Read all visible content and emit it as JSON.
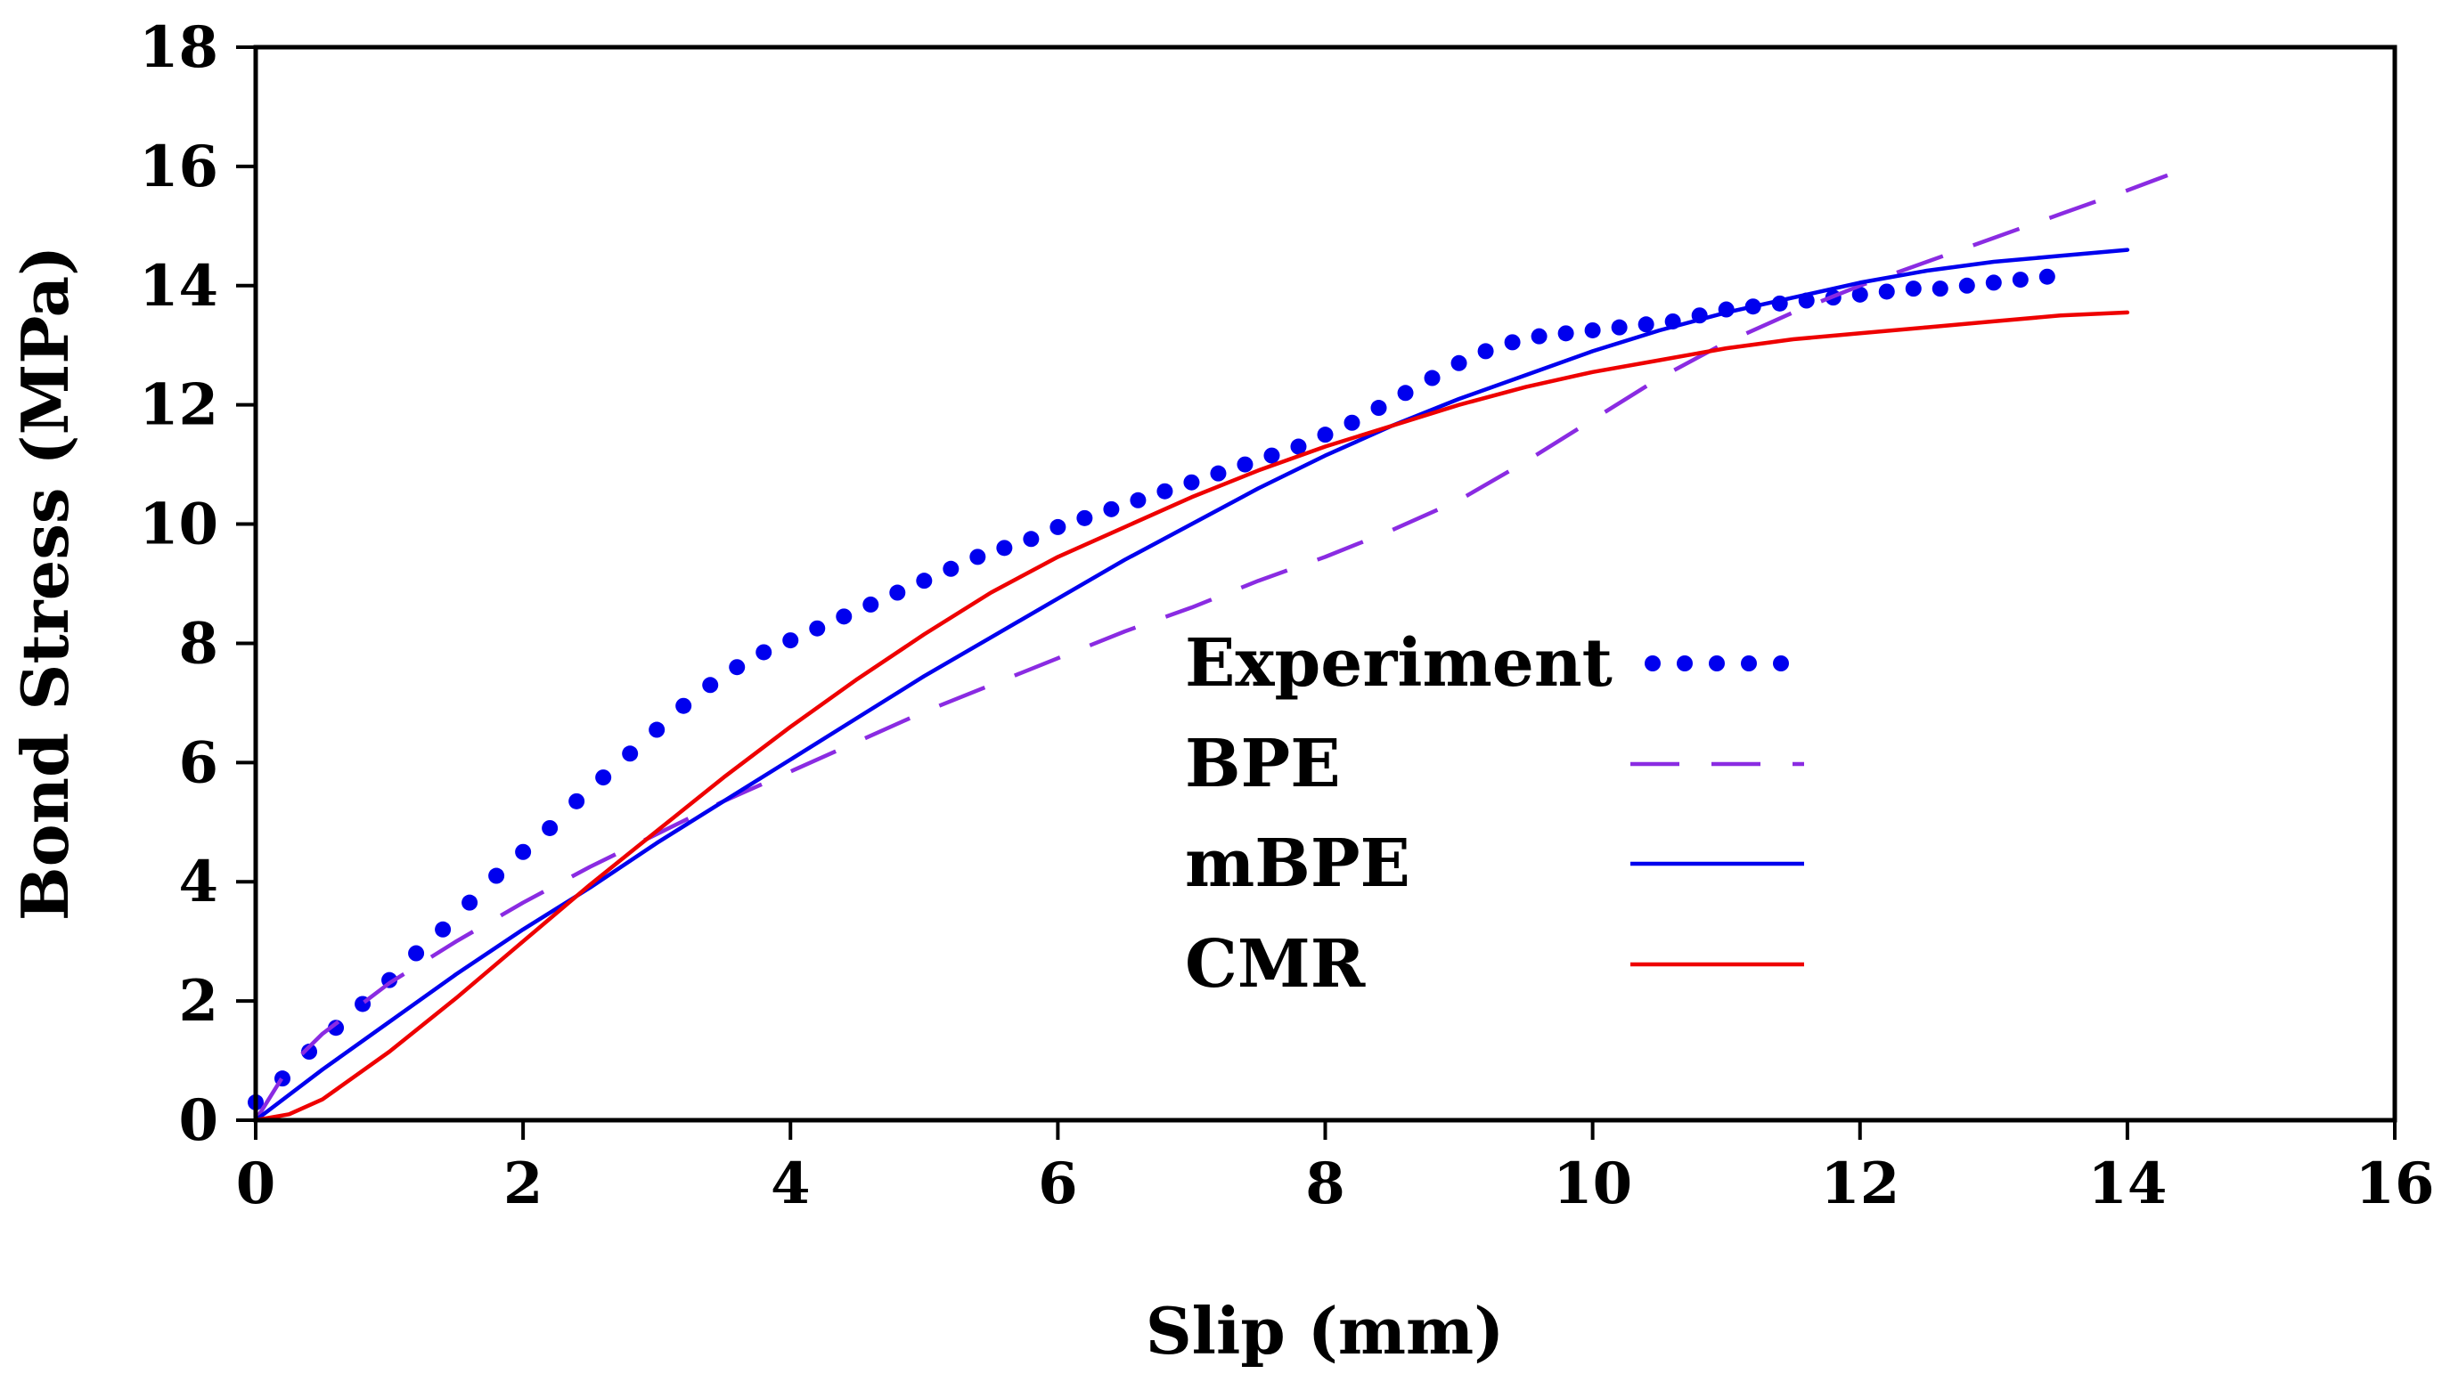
{
  "chart_data": {
    "type": "line",
    "title": "",
    "xlabel": "Slip (mm)",
    "ylabel": "Bond Stress (MPa)",
    "xlim": [
      0,
      16
    ],
    "ylim": [
      0,
      18
    ],
    "xticks": [
      0,
      2,
      4,
      6,
      8,
      10,
      12,
      14,
      16
    ],
    "yticks": [
      0,
      2,
      4,
      6,
      8,
      10,
      12,
      14,
      16,
      18
    ],
    "grid": false,
    "legend_position": "center-right",
    "series": [
      {
        "name": "Experiment",
        "style": "dotted",
        "color": "#0000ee",
        "x": [
          0,
          0.2,
          0.4,
          0.6,
          0.8,
          1.0,
          1.2,
          1.4,
          1.6,
          1.8,
          2.0,
          2.2,
          2.4,
          2.6,
          2.8,
          3.0,
          3.2,
          3.4,
          3.6,
          3.8,
          4.0,
          4.2,
          4.4,
          4.6,
          4.8,
          5.0,
          5.2,
          5.4,
          5.6,
          5.8,
          6.0,
          6.2,
          6.4,
          6.6,
          6.8,
          7.0,
          7.2,
          7.4,
          7.6,
          7.8,
          8.0,
          8.2,
          8.4,
          8.6,
          8.8,
          9.0,
          9.2,
          9.4,
          9.6,
          9.8,
          10.0,
          10.2,
          10.4,
          10.6,
          10.8,
          11.0,
          11.2,
          11.4,
          11.6,
          11.8,
          12.0,
          12.2,
          12.4,
          12.6,
          12.8,
          13.0,
          13.2,
          13.4
        ],
        "y": [
          0.3,
          0.7,
          1.15,
          1.55,
          1.95,
          2.35,
          2.8,
          3.2,
          3.65,
          4.1,
          4.5,
          4.9,
          5.35,
          5.75,
          6.15,
          6.55,
          6.95,
          7.3,
          7.6,
          7.85,
          8.05,
          8.25,
          8.45,
          8.65,
          8.85,
          9.05,
          9.25,
          9.45,
          9.6,
          9.75,
          9.95,
          10.1,
          10.25,
          10.4,
          10.55,
          10.7,
          10.85,
          11.0,
          11.15,
          11.3,
          11.5,
          11.7,
          11.95,
          12.2,
          12.45,
          12.7,
          12.9,
          13.05,
          13.15,
          13.2,
          13.25,
          13.3,
          13.35,
          13.4,
          13.5,
          13.6,
          13.65,
          13.7,
          13.75,
          13.8,
          13.85,
          13.9,
          13.95,
          13.95,
          14.0,
          14.05,
          14.1,
          14.15
        ]
      },
      {
        "name": "BPE",
        "style": "dashed",
        "color": "#8a2be2",
        "x": [
          0,
          0.25,
          0.5,
          1,
          1.5,
          2,
          2.5,
          3,
          3.5,
          4,
          4.5,
          5,
          5.5,
          6,
          6.5,
          7,
          7.5,
          8,
          8.5,
          9,
          9.5,
          10,
          10.5,
          11,
          11.5,
          12,
          12.5,
          13,
          13.5,
          14,
          14.3
        ],
        "y": [
          0,
          0.9,
          1.45,
          2.3,
          3.0,
          3.65,
          4.25,
          4.8,
          5.35,
          5.85,
          6.35,
          6.85,
          7.3,
          7.75,
          8.2,
          8.6,
          9.05,
          9.45,
          9.9,
          10.4,
          11.05,
          11.75,
          12.45,
          13.05,
          13.55,
          14.0,
          14.4,
          14.8,
          15.2,
          15.6,
          15.85
        ]
      },
      {
        "name": "mBPE",
        "style": "solid",
        "color": "#0000ee",
        "x": [
          0,
          0.5,
          1,
          1.5,
          2,
          2.5,
          3,
          3.5,
          4,
          4.5,
          5,
          5.5,
          6,
          6.5,
          7,
          7.5,
          8,
          8.5,
          9,
          9.5,
          10,
          10.5,
          11,
          11.5,
          12,
          12.5,
          13,
          13.5,
          14
        ],
        "y": [
          0,
          0.85,
          1.65,
          2.45,
          3.2,
          3.9,
          4.65,
          5.35,
          6.05,
          6.75,
          7.45,
          8.1,
          8.75,
          9.4,
          10.0,
          10.6,
          11.15,
          11.65,
          12.1,
          12.5,
          12.9,
          13.25,
          13.55,
          13.8,
          14.05,
          14.25,
          14.4,
          14.5,
          14.6
        ]
      },
      {
        "name": "CMR",
        "style": "solid",
        "color": "#ee0000",
        "x": [
          0,
          0.25,
          0.5,
          0.75,
          1,
          1.5,
          2,
          2.5,
          3,
          3.5,
          4,
          4.5,
          5,
          5.5,
          6,
          6.5,
          7,
          7.5,
          8,
          8.5,
          9,
          9.5,
          10,
          10.5,
          11,
          11.5,
          12,
          12.5,
          13,
          13.5,
          14
        ],
        "y": [
          0,
          0.1,
          0.35,
          0.75,
          1.15,
          2.05,
          3.0,
          3.95,
          4.85,
          5.75,
          6.6,
          7.4,
          8.15,
          8.85,
          9.45,
          9.95,
          10.45,
          10.9,
          11.3,
          11.65,
          12.0,
          12.3,
          12.55,
          12.75,
          12.95,
          13.1,
          13.2,
          13.3,
          13.4,
          13.5,
          13.55
        ]
      }
    ]
  }
}
